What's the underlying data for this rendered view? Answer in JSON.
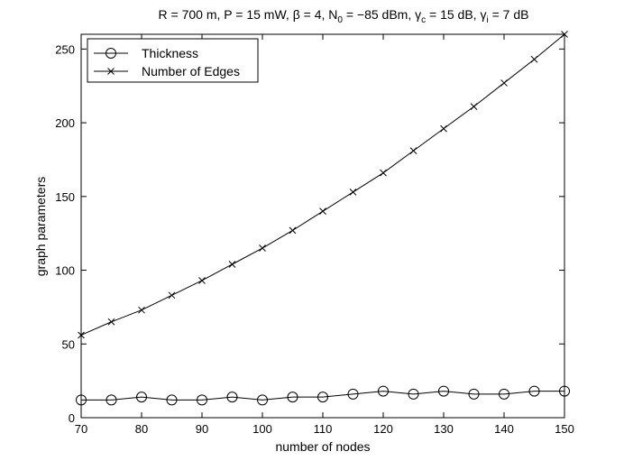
{
  "chart_data": {
    "type": "line",
    "title": {
      "prefix": "R = 700 m, P = 15 mW, ",
      "beta": "β = 4, ",
      "n0": "N",
      "n0_sub": "0",
      "n0_rest": " = −85 dBm, ",
      "gc": "γ",
      "gc_sub": "c",
      "gc_rest": " = 15 dB, ",
      "gi": "γ",
      "gi_sub": "i",
      "gi_rest": " = 7 dB"
    },
    "xlabel": "number of nodes",
    "ylabel": "graph parameters",
    "xlim": [
      70,
      150
    ],
    "ylim": [
      0,
      260
    ],
    "xticks": [
      70,
      80,
      90,
      100,
      110,
      120,
      130,
      140,
      150
    ],
    "yticks": [
      0,
      50,
      100,
      150,
      200,
      250
    ],
    "grid": false,
    "legend_position": "top-left",
    "x": [
      70,
      75,
      80,
      85,
      90,
      95,
      100,
      105,
      110,
      115,
      120,
      125,
      130,
      135,
      140,
      145,
      150
    ],
    "series": [
      {
        "name": "Thickness",
        "marker": "circle",
        "color": "#000000",
        "values": [
          12,
          12,
          14,
          12,
          12,
          14,
          12,
          14,
          14,
          16,
          18,
          16,
          18,
          16,
          16,
          18,
          18
        ]
      },
      {
        "name": "Number of Edges",
        "marker": "x",
        "color": "#000000",
        "values": [
          56,
          65,
          73,
          83,
          93,
          104,
          115,
          127,
          140,
          153,
          166,
          181,
          196,
          211,
          227,
          243,
          260
        ]
      }
    ]
  }
}
